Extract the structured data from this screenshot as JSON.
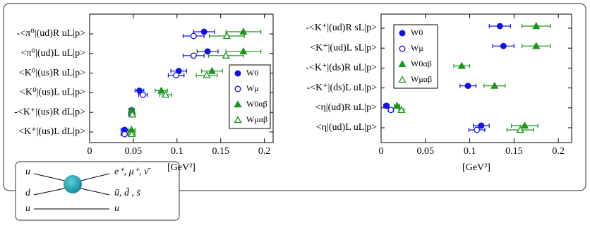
{
  "chart_data": [
    {
      "type": "dot",
      "xlabel": "[GeV²]",
      "categories": [
        "-<π⁰|(ud)R uL|p>",
        "<π⁰|(ud)L uL|p>",
        "<K⁰|(us)R uL|p>",
        "<K⁰|(us)L uL|p>",
        "-<K⁺|(us)R dL|p>",
        "<K⁺|(us)L dL|p>"
      ],
      "xlim": [
        0,
        0.21
      ],
      "xticks": [
        0,
        0.05,
        0.1,
        0.15,
        0.2
      ],
      "series": [
        {
          "name": "W0",
          "color": "#1010f0",
          "marker": "circle",
          "filled": true,
          "values": [
            0.131,
            0.135,
            0.102,
            0.057,
            0.048,
            0.04
          ],
          "errors": [
            0.012,
            0.012,
            0.009,
            0.005,
            0.003,
            0.004
          ]
        },
        {
          "name": "Wμ",
          "color": "#1010f0",
          "marker": "circle",
          "filled": false,
          "values": [
            0.119,
            0.119,
            0.099,
            0.061,
            0.048,
            0.04
          ],
          "errors": [
            0.012,
            0.012,
            0.009,
            0.005,
            0.003,
            0.004
          ]
        },
        {
          "name": "W0αβ",
          "color": "#1a961a",
          "marker": "triangle",
          "filled": true,
          "values": [
            0.176,
            0.176,
            0.14,
            0.082,
            0.048,
            0.048
          ],
          "errors": [
            0.02,
            0.02,
            0.012,
            0.007,
            0.003,
            0.004
          ]
        },
        {
          "name": "Wμαβ",
          "color": "#1a961a",
          "marker": "triangle",
          "filled": false,
          "values": [
            0.157,
            0.156,
            0.134,
            0.087,
            0.049,
            0.048
          ],
          "errors": [
            0.02,
            0.02,
            0.012,
            0.007,
            0.003,
            0.004
          ]
        }
      ]
    },
    {
      "type": "dot",
      "xlabel": "[GeV²]",
      "categories": [
        "-<K⁺|(ud)R sL|p>",
        "<K⁺|(ud)L sL|p>",
        "-<K⁺|(ds)R uL|p>",
        "-<K⁺|(ds)L uL|p>",
        "<η|(ud)R uL|p>",
        "<η|(ud)L uL|p>"
      ],
      "xlim": [
        0,
        0.215
      ],
      "xticks": [
        0,
        0.05,
        0.1,
        0.15,
        0.2
      ],
      "series": [
        {
          "name": "W0",
          "color": "#1010f0",
          "marker": "circle",
          "filled": true,
          "values": [
            0.134,
            0.138,
            null,
            0.098,
            0.006,
            0.113
          ],
          "errors": [
            0.012,
            0.012,
            null,
            0.009,
            0.003,
            0.009
          ]
        },
        {
          "name": "Wμ",
          "color": "#1010f0",
          "marker": "circle",
          "filled": false,
          "values": [
            null,
            null,
            null,
            null,
            0.011,
            0.108
          ],
          "errors": [
            null,
            null,
            null,
            null,
            0.003,
            0.009
          ]
        },
        {
          "name": "W0αβ",
          "color": "#1a961a",
          "marker": "triangle",
          "filled": true,
          "values": [
            0.175,
            0.175,
            0.091,
            0.128,
            0.018,
            0.162
          ],
          "errors": [
            0.016,
            0.016,
            0.009,
            0.012,
            0.003,
            0.015
          ]
        },
        {
          "name": "Wμαβ",
          "color": "#1a961a",
          "marker": "triangle",
          "filled": false,
          "values": [
            null,
            null,
            null,
            null,
            0.023,
            0.157
          ],
          "errors": [
            null,
            null,
            null,
            null,
            0.003,
            0.015
          ]
        }
      ]
    }
  ],
  "diagram": {
    "in_top": "u",
    "in_bottom": "d",
    "out_top": "e⁺, μ⁺, ν̄",
    "out_bottom": "ū, d̄ , s̄",
    "spectator_in": "u",
    "spectator_out": "u"
  }
}
